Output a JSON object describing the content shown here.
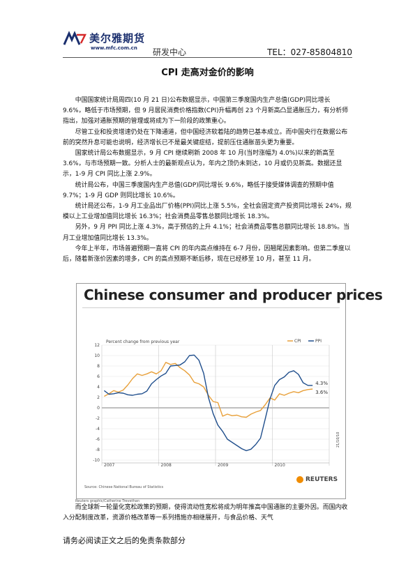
{
  "header": {
    "logo_cn": "美尔雅期货",
    "logo_url": "www.mfc.com.cn",
    "department": "研发中心",
    "tel": "TEL：027-85804810",
    "logo_colors": [
      "#1b2f6e",
      "#d62a2a"
    ]
  },
  "title": "CPI 走高对金价的影响",
  "paragraphs": [
    "中国国家统计局周四(10 月 21 日)公布数据显示，中国第三季度国内生产总值(GDP)同比增长 9.6%，略低于市场预期，但 9 月居民消费价格指数(CPI)升幅再创 23 个月新高凸显通胀压力，有分析师指出，加强对通胀预期的管理或将成为下一阶段的政策重心。",
    "尽管工业和投资增速仍处在下降通道，但中国经济软着陆的趋势已基本成立。而中国央行在数据公布前的突然升息可能也说明，经济增长已不是最关键症结，提前压住通胀苗头更为重要。",
    "国家统计局公布数据显示，9 月 CPI 继续刷新 2008 年 10 月(当时涨幅为 4.0%)以来的新高至 3.6%，与市场预期一致。分析人士的最新观点认为，年内之顶仍未到达，10 月或仍见新高。数据还显示，1-9 月 CPI 同比上涨 2.9%。",
    "统计局公布，中国三季度国内生产总值(GDP)同比增长 9.6%，略低于接受媒体调查的预期中值 9.7%；1-9 月 GDP 则同比增长 10.6%。",
    "统计局还公布，1-9 月工业品出厂价格(PPI)同比上涨 5.5%，全社会固定资产投资同比增长 24%，规模以上工业增加值同比增长 16.3%；社会消费品零售总额同比增长 18.3%。",
    "另外，9 月 PPI 同比上涨 4.3%，高于预估的上升 4.1%；社会消费品零售总额同比增长 18.8%。当月工业增加值同比增长 13.3%。",
    "今年上半年，市场普遍预期一直将 CPI 的年内高点维持在 6-7 月份，因翘尾因素影响。但第二季度以后，随着新涨价因素的增多，CPI 的高点预期不断后移，现在已经移至 10 月，甚至 11 月。"
  ],
  "chart_data": {
    "type": "line",
    "title": "Chinese consumer and producer prices",
    "subtitle": "Percent change from previous year",
    "x": [
      "2007-01",
      "2007-02",
      "2007-03",
      "2007-04",
      "2007-05",
      "2007-06",
      "2007-07",
      "2007-08",
      "2007-09",
      "2007-10",
      "2007-11",
      "2007-12",
      "2008-01",
      "2008-02",
      "2008-03",
      "2008-04",
      "2008-05",
      "2008-06",
      "2008-07",
      "2008-08",
      "2008-09",
      "2008-10",
      "2008-11",
      "2008-12",
      "2009-01",
      "2009-02",
      "2009-03",
      "2009-04",
      "2009-05",
      "2009-06",
      "2009-07",
      "2009-08",
      "2009-09",
      "2009-10",
      "2009-11",
      "2009-12",
      "2010-01",
      "2010-02",
      "2010-03",
      "2010-04",
      "2010-05",
      "2010-06",
      "2010-07",
      "2010-08",
      "2010-09"
    ],
    "series": [
      {
        "name": "CPI",
        "color": "#e8a03a",
        "values": [
          2.2,
          2.7,
          3.3,
          3.0,
          3.4,
          4.4,
          5.6,
          6.5,
          6.2,
          6.5,
          6.9,
          6.5,
          7.1,
          8.7,
          8.3,
          8.5,
          7.7,
          7.1,
          6.3,
          4.9,
          4.6,
          4.0,
          2.4,
          1.2,
          1.0,
          -1.6,
          -1.2,
          -1.5,
          -1.4,
          -1.7,
          -1.8,
          -1.2,
          -0.8,
          -0.5,
          0.6,
          1.9,
          1.5,
          2.7,
          2.4,
          2.8,
          3.1,
          2.9,
          3.3,
          3.5,
          3.6
        ]
      },
      {
        "name": "PPI",
        "color": "#1f4e8c",
        "values": [
          3.3,
          2.6,
          2.7,
          2.9,
          2.8,
          2.5,
          2.4,
          2.6,
          2.7,
          3.2,
          4.6,
          5.4,
          6.1,
          6.6,
          8.0,
          8.1,
          8.2,
          8.8,
          10.0,
          10.1,
          9.1,
          6.6,
          2.0,
          -1.1,
          -3.3,
          -4.5,
          -6.0,
          -6.6,
          -7.2,
          -7.8,
          -8.2,
          -7.9,
          -7.0,
          -5.8,
          -2.1,
          1.7,
          4.3,
          5.4,
          5.9,
          6.8,
          7.1,
          6.4,
          4.8,
          4.3,
          4.3
        ]
      }
    ],
    "end_labels": [
      "4.3%",
      "3.6%"
    ],
    "yticks": [
      "12",
      "10",
      "8",
      "6",
      "4",
      "2",
      "0",
      "-2",
      "-4",
      "-6",
      "-8",
      "-10"
    ],
    "ylim": [
      -10,
      12
    ],
    "xtick_labels": [
      "2007",
      "2008",
      "2009",
      "2010"
    ],
    "legend": [
      "CPI",
      "PPI"
    ],
    "legend_position": "top-right",
    "grid": true,
    "source": "Source: Chinese National Bureau of Statistics",
    "date_stamp": "21/10/10"
  },
  "chart_credit": "Reuters graphic/Catherine Trevethan",
  "reuters_label": "REUTERS",
  "bottom_paragraph": "而全球新一轮量化宽松政策的预期，使得流动性宽松将成为明年推高中国通胀的主要外因。而国内收入分配制度改革，资源价格改革等一系列措施亦相继展开，与食品价格、天气",
  "disclaimer": "请务必阅读正文之后的免责条款部分"
}
